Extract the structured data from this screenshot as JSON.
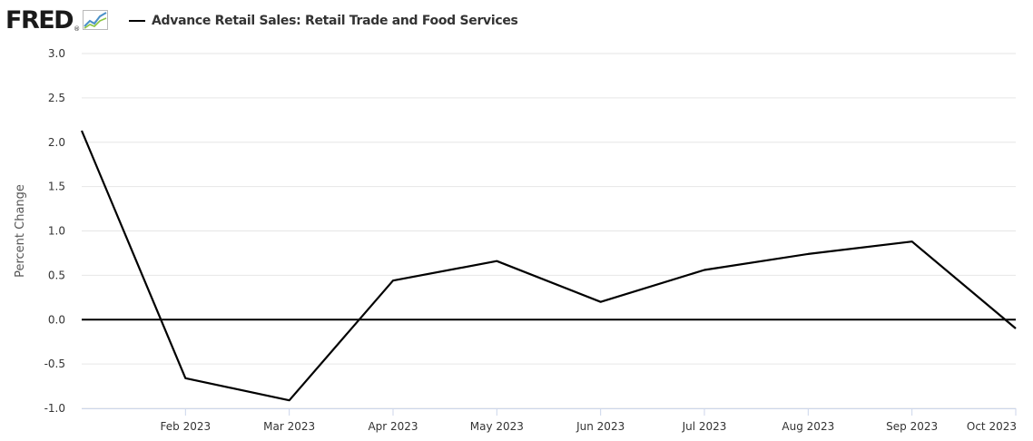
{
  "header": {
    "logo_text": "FRED",
    "logo_reg": "®",
    "logo_icon": "line-chart-icon"
  },
  "colors": {
    "series": "#000000",
    "grid": "#e6e6e6",
    "zero_line": "#000000",
    "tick_text": "#333333",
    "icon_blue": "#4a90c8",
    "icon_green": "#8cc63f"
  },
  "chart_data": {
    "type": "line",
    "title": "",
    "xlabel": "",
    "ylabel": "Percent Change",
    "ylim": [
      -1.0,
      3.0
    ],
    "yticks": [
      3.0,
      2.5,
      2.0,
      1.5,
      1.0,
      0.5,
      0.0,
      -0.5,
      -1.0
    ],
    "ytick_labels": [
      "3.0",
      "2.5",
      "2.0",
      "1.5",
      "1.0",
      "0.5",
      "0.0",
      "-0.5",
      "-1.0"
    ],
    "x": [
      "2023-01",
      "2023-02",
      "2023-03",
      "2023-04",
      "2023-05",
      "2023-06",
      "2023-07",
      "2023-08",
      "2023-09",
      "2023-10"
    ],
    "xtick_labels": [
      "Feb 2023",
      "Mar 2023",
      "Apr 2023",
      "May 2023",
      "Jun 2023",
      "Jul 2023",
      "Aug 2023",
      "Sep 2023",
      "Oct 2023"
    ],
    "grid": true,
    "legend_placement": "top-left",
    "zero_line": true,
    "series": [
      {
        "name": "Advance Retail Sales: Retail Trade and Food Services",
        "values": [
          2.13,
          -0.66,
          -0.91,
          0.44,
          0.66,
          0.2,
          0.56,
          0.74,
          0.88,
          -0.1
        ]
      }
    ]
  }
}
